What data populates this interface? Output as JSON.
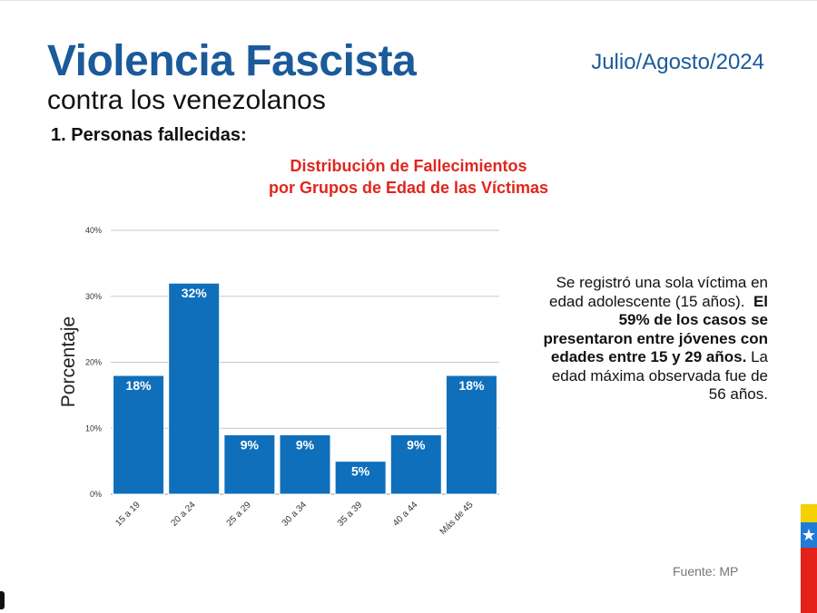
{
  "header": {
    "title": "Violencia Fascista",
    "subtitle": "contra los venezolanos",
    "date": "Julio/Agosto/2024",
    "section": "1.  Personas fallecidas:"
  },
  "side_text": {
    "p1": "Se registró una sola víctima en edad adolescente (15 años).",
    "p2_bold": "El 59% de los casos se presentaron entre jóvenes con edades entre 15 y 29 años.",
    "p3": "La edad máxima observada fue de 56 años."
  },
  "source": "Fuente: MP",
  "colors": {
    "bar": "#0f6fba",
    "title_blue": "#1b5a9b",
    "chart_title_red": "#e0261d"
  },
  "chart_data": {
    "type": "bar",
    "title_line1": "Distribución de Fallecimientos",
    "title_line2": "por Grupos de Edad de las Víctimas",
    "ylabel": "Porcentaje",
    "xlabel": "",
    "categories": [
      "15 a 19",
      "20 a 24",
      "25 a 29",
      "30 a 34",
      "35 a 39",
      "40 a 44",
      "Más de 45"
    ],
    "values": [
      18,
      32,
      9,
      9,
      5,
      9,
      18
    ],
    "value_labels": [
      "18%",
      "32%",
      "9%",
      "9%",
      "5%",
      "9%",
      "18%"
    ],
    "ylim": [
      0,
      40
    ],
    "yticks": [
      "0%",
      "10%",
      "20%",
      "30%",
      "40%"
    ],
    "grid": true
  }
}
